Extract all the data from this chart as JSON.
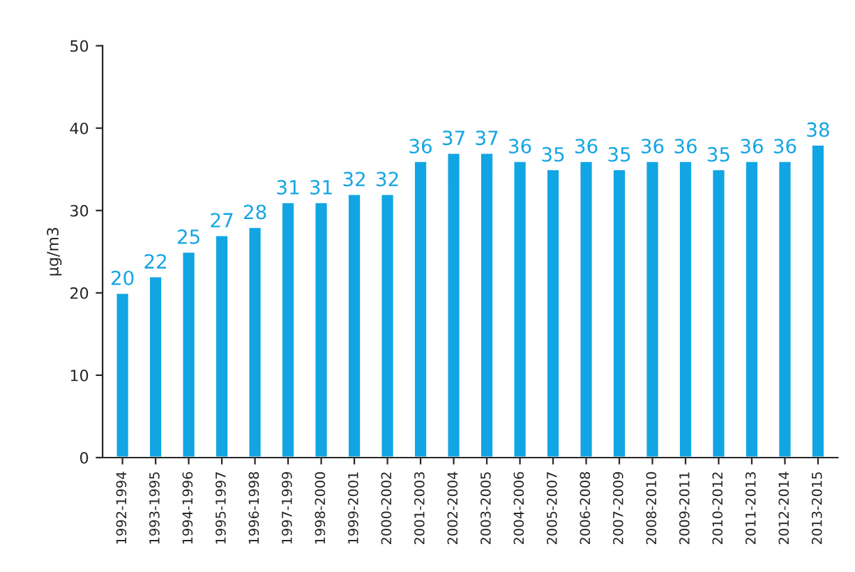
{
  "chart_data": {
    "type": "bar",
    "ylabel": "µg/m3",
    "categories": [
      "1992-1994",
      "1993-1995",
      "1994-1996",
      "1995-1997",
      "1996-1998",
      "1997-1999",
      "1998-2000",
      "1999-2001",
      "2000-2002",
      "2001-2003",
      "2002-2004",
      "2003-2005",
      "2004-2006",
      "2005-2007",
      "2006-2008",
      "2007-2009",
      "2008-2010",
      "2009-2011",
      "2010-2012",
      "2011-2013",
      "2012-2014",
      "2013-2015"
    ],
    "values": [
      20,
      22,
      25,
      27,
      28,
      31,
      31,
      32,
      32,
      36,
      37,
      37,
      36,
      35,
      36,
      35,
      36,
      36,
      35,
      36,
      36,
      38
    ],
    "color": "#12a5e3",
    "ylim": [
      0,
      50
    ],
    "yticks": [
      0,
      10,
      20,
      30,
      40,
      50
    ],
    "data_labels": true,
    "grid": false
  }
}
